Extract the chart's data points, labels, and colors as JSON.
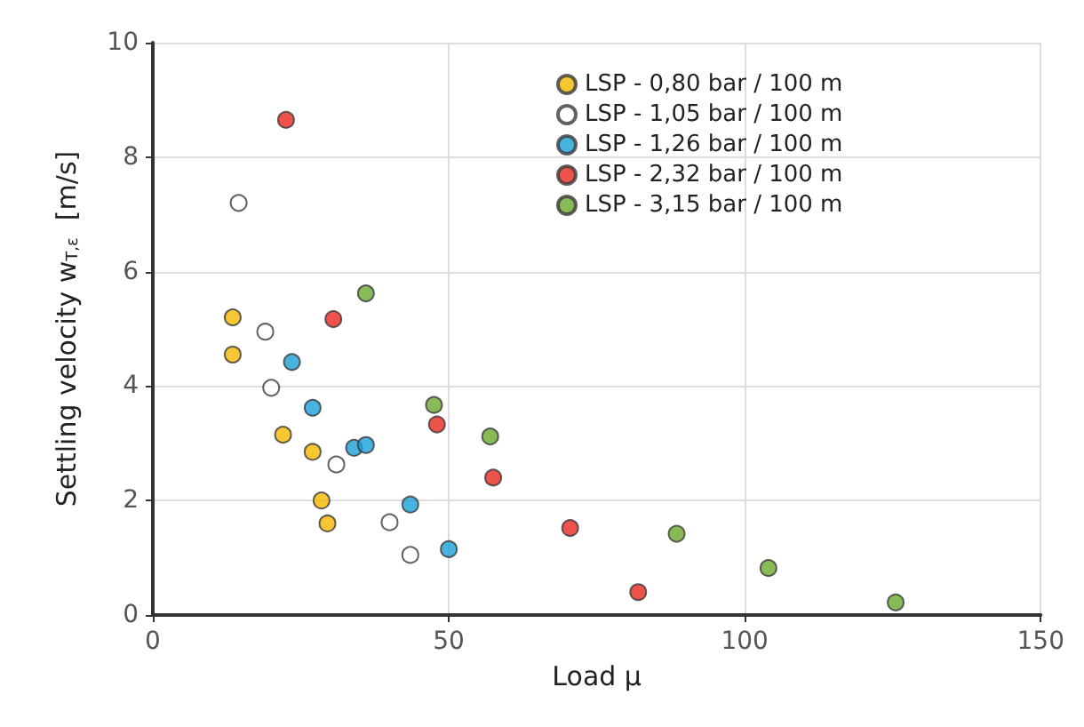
{
  "chart_data": {
    "type": "scatter",
    "xlabel": "Load μ",
    "ylabel": "Settling velocity w$_{T,ε}$  [m/s]",
    "xlim": [
      0,
      150
    ],
    "xticks": [
      0,
      50,
      100,
      150
    ],
    "ylim": [
      0,
      10
    ],
    "yticks": [
      0,
      2,
      4,
      6,
      8,
      10
    ],
    "grid": true,
    "legend": "top right",
    "marker": "circle",
    "series": [
      {
        "name": "LSP - 0,80 bar / 100 m",
        "color": "#f5b800",
        "x": [
          13.5,
          13.5,
          22,
          27,
          28.5,
          29.5
        ],
        "values": [
          5.2,
          4.55,
          3.15,
          2.85,
          2.0,
          1.6
        ]
      },
      {
        "name": "LSP - 1,05 bar / 100 m",
        "color": "#ffffff",
        "x": [
          14.5,
          19,
          20,
          31,
          40,
          43.5
        ],
        "values": [
          7.2,
          4.95,
          3.97,
          2.63,
          1.62,
          1.05
        ]
      },
      {
        "name": "LSP - 1,26 bar / 100 m",
        "color": "#1a9fd8",
        "x": [
          23.5,
          27,
          34,
          36,
          43.5,
          50
        ],
        "values": [
          4.42,
          3.62,
          2.92,
          2.97,
          1.93,
          1.15
        ]
      },
      {
        "name": "LSP - 2,32 bar / 100 m",
        "color": "#e8281e",
        "x": [
          22.5,
          30.5,
          48,
          57.5,
          70.5,
          82
        ],
        "values": [
          8.65,
          5.17,
          3.33,
          2.4,
          1.52,
          0.4
        ]
      },
      {
        "name": "LSP - 3,15 bar / 100 m",
        "color": "#6aaa2e",
        "x": [
          36,
          47.5,
          57,
          88.5,
          104,
          125.5
        ],
        "values": [
          5.62,
          3.67,
          3.12,
          1.42,
          0.82,
          0.22
        ]
      }
    ]
  }
}
